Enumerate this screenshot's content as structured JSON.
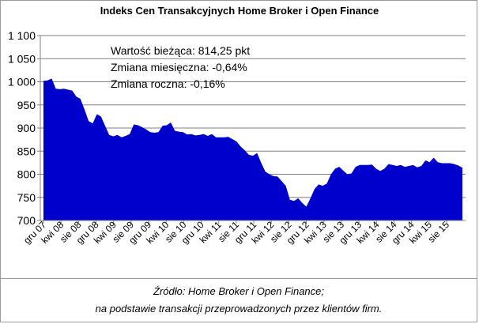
{
  "chart_data": {
    "type": "area",
    "title": "Indeks Cen Transakcyjnych Home Broker i Open Finance",
    "xlabel": "",
    "ylabel": "",
    "ylim": [
      700,
      1100
    ],
    "yticks": [
      700,
      750,
      800,
      850,
      900,
      950,
      1000,
      1050,
      1100
    ],
    "ytick_labels": [
      "700",
      "750",
      "800",
      "850",
      "900",
      "950",
      "1 000",
      "1 050",
      "1 100"
    ],
    "grid": "horizontal",
    "fill_color": "#0000cc",
    "x_tick_labels": [
      "gru 07",
      "kwi 08",
      "sie 08",
      "gru 08",
      "kwi 09",
      "sie 09",
      "gru 09",
      "kwi 10",
      "sie 10",
      "gru 10",
      "kwi 11",
      "sie 11",
      "gru 11",
      "kwi 12",
      "sie 12",
      "gru 12",
      "kwi 13",
      "sie 13",
      "gru 13",
      "kwi 14",
      "sie 14",
      "gru 14",
      "kwi 15",
      "sie 15"
    ],
    "annotations": [
      "Wartość bieżąca: 814,25 pkt",
      "Zmiana miesięczna: -0,64%",
      "Zmiana roczna: -0,16%"
    ],
    "series": [
      {
        "values": [
          1002,
          1003,
          1007,
          985,
          984,
          985,
          983,
          981,
          968,
          963,
          940,
          915,
          910,
          930,
          925,
          905,
          885,
          882,
          885,
          880,
          883,
          887,
          908,
          906,
          902,
          897,
          891,
          890,
          891,
          905,
          906,
          912,
          894,
          892,
          891,
          886,
          887,
          884,
          885,
          887,
          883,
          887,
          880,
          880,
          880,
          881,
          876,
          871,
          860,
          852,
          842,
          840,
          846,
          825,
          806,
          800,
          796,
          795,
          785,
          775,
          745,
          742,
          748,
          738,
          730,
          748,
          768,
          778,
          775,
          780,
          800,
          812,
          816,
          808,
          800,
          802,
          816,
          820,
          820,
          820,
          821,
          812,
          807,
          812,
          822,
          820,
          818,
          820,
          816,
          818,
          820,
          815,
          818,
          830,
          826,
          836,
          826,
          824,
          824,
          824,
          822,
          819,
          814
        ]
      }
    ]
  },
  "source": {
    "line1": "Źródło: Home Broker i Open Finance;",
    "line2": "na podstawie transakcji przeprowadzonych przez klientów firm."
  }
}
